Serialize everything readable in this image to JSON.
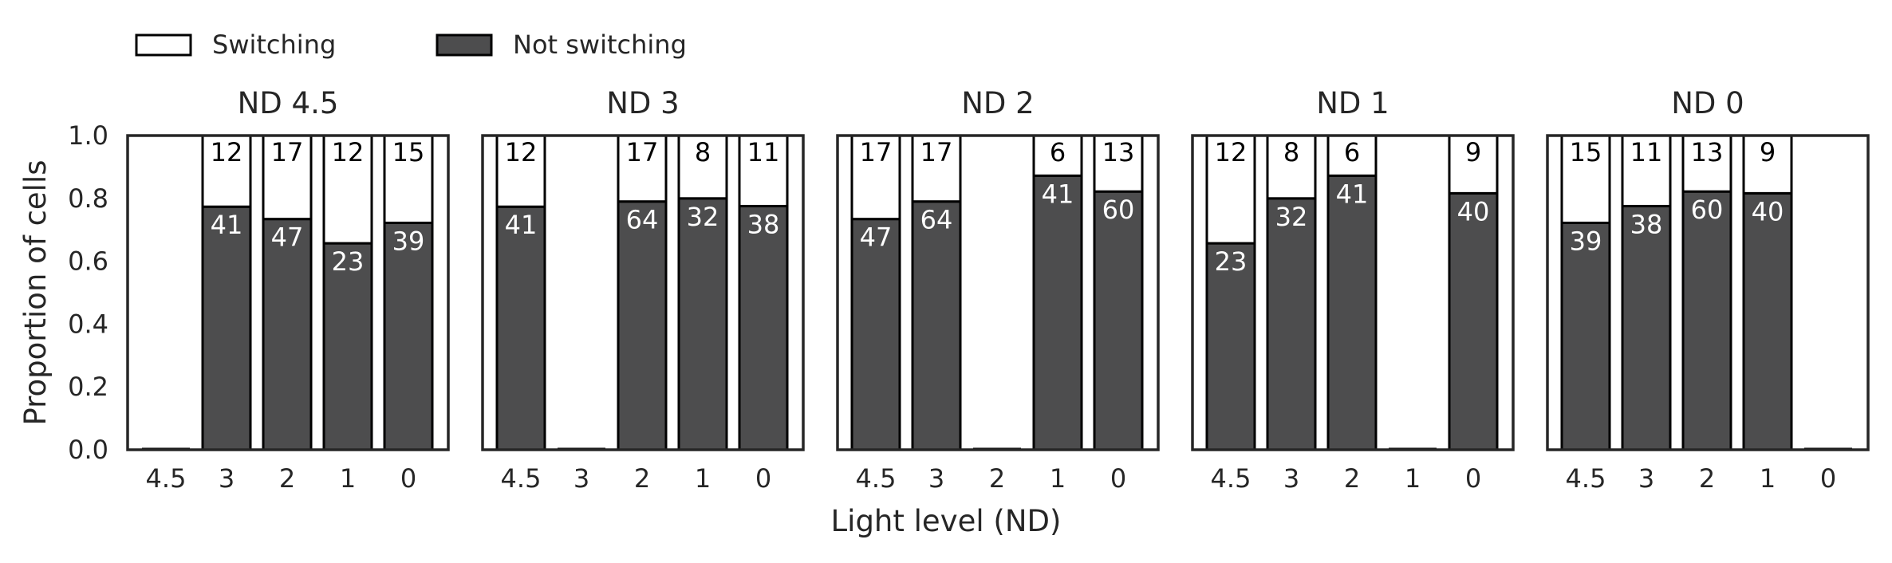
{
  "chart_data": {
    "type": "bar",
    "stacked": true,
    "ylabel": "Proportion of cells",
    "xlabel": "Light level (ND)",
    "ylim": [
      0,
      1.0
    ],
    "yticks": [
      "0.0",
      "0.2",
      "0.4",
      "0.6",
      "0.8",
      "1.0"
    ],
    "grid": false,
    "legend": {
      "placement": "top-left",
      "entries": [
        {
          "name": "Switching",
          "color": "#ffffff"
        },
        {
          "name": "Not switching",
          "color": "#4d4d4e"
        }
      ]
    },
    "colors": {
      "switching": "#ffffff",
      "not_switching": "#4d4d4e",
      "edge": "#000000",
      "frame": "#262626"
    },
    "categories": [
      "4.5",
      "3",
      "2",
      "1",
      "0"
    ],
    "panels": [
      {
        "title": "ND 4.5",
        "switching": [
          0,
          12,
          17,
          12,
          15
        ],
        "not_switching": [
          0,
          41,
          47,
          23,
          39
        ]
      },
      {
        "title": "ND 3",
        "switching": [
          12,
          0,
          17,
          8,
          11
        ],
        "not_switching": [
          41,
          0,
          64,
          32,
          38
        ]
      },
      {
        "title": "ND 2",
        "switching": [
          17,
          17,
          0,
          6,
          13
        ],
        "not_switching": [
          47,
          64,
          0,
          41,
          60
        ]
      },
      {
        "title": "ND 1",
        "switching": [
          12,
          8,
          6,
          0,
          9
        ],
        "not_switching": [
          23,
          32,
          41,
          0,
          40
        ]
      },
      {
        "title": "ND 0",
        "switching": [
          15,
          11,
          13,
          9,
          0
        ],
        "not_switching": [
          39,
          38,
          60,
          40,
          0
        ]
      }
    ]
  }
}
